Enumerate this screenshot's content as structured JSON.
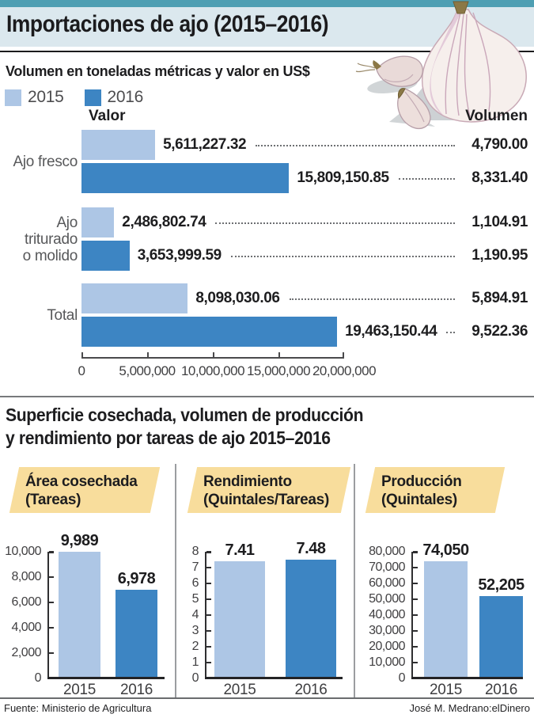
{
  "header": {
    "title": "Importaciones de ajo (2015–2016)",
    "subtitle": "Volumen en toneladas métricas y valor en US$"
  },
  "legend": {
    "items": [
      {
        "label": "2015",
        "color": "#adc6e5"
      },
      {
        "label": "2016",
        "color": "#3d85c3"
      }
    ]
  },
  "colors": {
    "c2015": "#adc6e5",
    "c2016": "#3d85c3",
    "teal": "#4e9fb3",
    "band": "#dbe8ee",
    "yellow": "#f8dd9c"
  },
  "section2": {
    "title_line1": "Superficie cosechada, volumen de producción",
    "title_line2": "y rendimiento por tareas de ajo 2015–2016"
  },
  "footer": {
    "source": "Fuente: Ministerio de Agricultura",
    "credit": "José M. Medrano:elDinero"
  },
  "chart_data": [
    {
      "type": "bar",
      "orientation": "horizontal",
      "title": "Importaciones de ajo (2015–2016)",
      "units_note": "Volumen en toneladas métricas y valor en US$",
      "value_axis_header": "Valor",
      "volume_column_header": "Volumen",
      "series_names": [
        "2015",
        "2016"
      ],
      "xlim": [
        0,
        20000000
      ],
      "xticks": [
        "0",
        "5,000,000",
        "10,000,000",
        "15,000,000",
        "20,000,000"
      ],
      "groups": [
        {
          "label": "Ajo fresco",
          "label_lines": [
            "Ajo fresco",
            ""
          ],
          "bars": [
            {
              "year": "2015",
              "value": 5611227.32,
              "value_label": "5,611,227.32",
              "volume": 4790.0,
              "volume_label": "4,790.00"
            },
            {
              "year": "2016",
              "value": 15809150.85,
              "value_label": "15,809,150.85",
              "volume": 8331.4,
              "volume_label": "8,331.40"
            }
          ]
        },
        {
          "label": "Ajo triturado o molido",
          "label_lines": [
            "Ajo triturado",
            "o molido"
          ],
          "bars": [
            {
              "year": "2015",
              "value": 2486802.74,
              "value_label": "2,486,802.74",
              "volume": 1104.91,
              "volume_label": "1,104.91"
            },
            {
              "year": "2016",
              "value": 3653999.59,
              "value_label": "3,653,999.59",
              "volume": 1190.95,
              "volume_label": "1,190.95"
            }
          ]
        },
        {
          "label": "Total",
          "label_lines": [
            "Total",
            ""
          ],
          "bars": [
            {
              "year": "2015",
              "value": 8098030.06,
              "value_label": "8,098,030.06",
              "volume": 5894.91,
              "volume_label": "5,894.91"
            },
            {
              "year": "2016",
              "value": 19463150.44,
              "value_label": "19,463,150.44",
              "volume": 9522.36,
              "volume_label": "9,522.36"
            }
          ]
        }
      ]
    },
    {
      "type": "bar",
      "title": "Área cosechada",
      "subtitle": "(Tareas)",
      "categories": [
        "2015",
        "2016"
      ],
      "values": [
        9989,
        6978
      ],
      "value_labels": [
        "9,989",
        "6,978"
      ],
      "ylim": [
        0,
        10000
      ],
      "yticks": [
        "0",
        "2,000",
        "4,000",
        "6,000",
        "8,000",
        "10,000"
      ]
    },
    {
      "type": "bar",
      "title": "Rendimiento",
      "subtitle": "(Quintales/Tareas)",
      "categories": [
        "2015",
        "2016"
      ],
      "values": [
        7.41,
        7.48
      ],
      "value_labels": [
        "7.41",
        "7.48"
      ],
      "ylim": [
        0,
        8
      ],
      "yticks": [
        "0",
        "1",
        "2",
        "3",
        "4",
        "5",
        "6",
        "7",
        "8"
      ]
    },
    {
      "type": "bar",
      "title": "Producción",
      "subtitle": "(Quintales)",
      "categories": [
        "2015",
        "2016"
      ],
      "values": [
        74050,
        52205
      ],
      "value_labels": [
        "74,050",
        "52,205"
      ],
      "ylim": [
        0,
        80000
      ],
      "yticks": [
        "0",
        "10,000",
        "20,000",
        "30,000",
        "40,000",
        "50,000",
        "60,000",
        "70,000",
        "80,000"
      ]
    }
  ]
}
